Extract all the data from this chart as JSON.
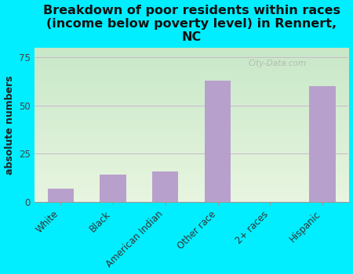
{
  "title": "Breakdown of poor residents within races\n(income below poverty level) in Rennert,\nNC",
  "categories": [
    "White",
    "Black",
    "American Indian",
    "Other race",
    "2+ races",
    "Hispanic"
  ],
  "values": [
    7,
    14,
    16,
    63,
    0,
    60
  ],
  "bar_color": "#b8a0cc",
  "background_outer": "#00eeff",
  "background_plot_top": "#c8e8c8",
  "background_plot_bottom": "#e8f5e0",
  "ylabel": "absolute numbers",
  "ylim": [
    0,
    80
  ],
  "yticks": [
    0,
    25,
    50,
    75
  ],
  "title_fontsize": 11.5,
  "ylabel_fontsize": 9,
  "tick_fontsize": 8.5,
  "grid_color": "#cccccc",
  "watermark": "City-Data.com"
}
